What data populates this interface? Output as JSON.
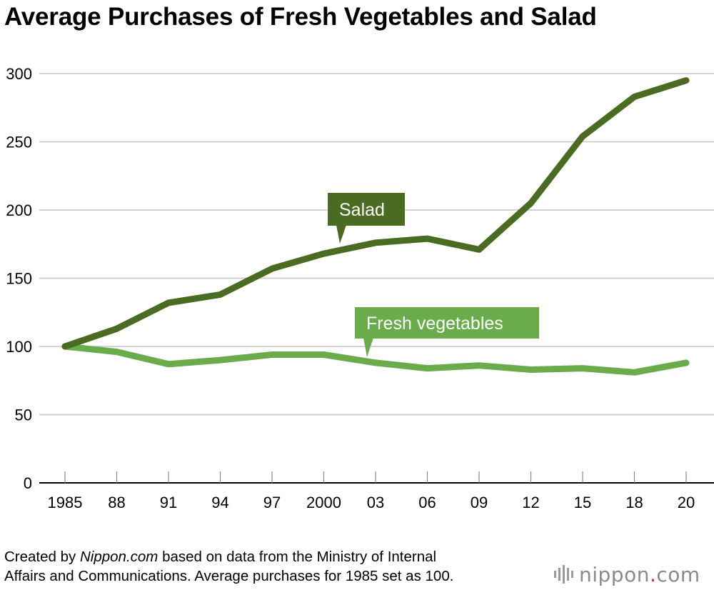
{
  "chart_data": {
    "type": "line",
    "title": "Average Purchases of Fresh Vegetables and Salad",
    "categories": [
      "1985",
      "88",
      "91",
      "94",
      "97",
      "2000",
      "03",
      "06",
      "09",
      "12",
      "15",
      "18",
      "20"
    ],
    "y_ticks": [
      "0",
      "50",
      "100",
      "150",
      "200",
      "250",
      "300"
    ],
    "ylim": [
      0,
      300
    ],
    "grid": true,
    "series": [
      {
        "name": "Salad",
        "color": "#4a6b22",
        "values": [
          100,
          113,
          132,
          138,
          157,
          168,
          176,
          179,
          171,
          205,
          254,
          283,
          295
        ]
      },
      {
        "name": "Fresh vegetables",
        "color": "#6aac4c",
        "values": [
          100,
          96,
          87,
          90,
          94,
          94,
          88,
          84,
          86,
          83,
          84,
          81,
          88
        ]
      }
    ]
  },
  "footer": {
    "credit_prefix": "Created by ",
    "credit_source": "Nippon.com",
    "credit_suffix": " based on data from the Ministry of Internal",
    "credit_line2": "Affairs and Communications. Average purchases for 1985 set as 100."
  },
  "logo": {
    "main": "nippon",
    "dot": ".",
    "tld": "com"
  }
}
